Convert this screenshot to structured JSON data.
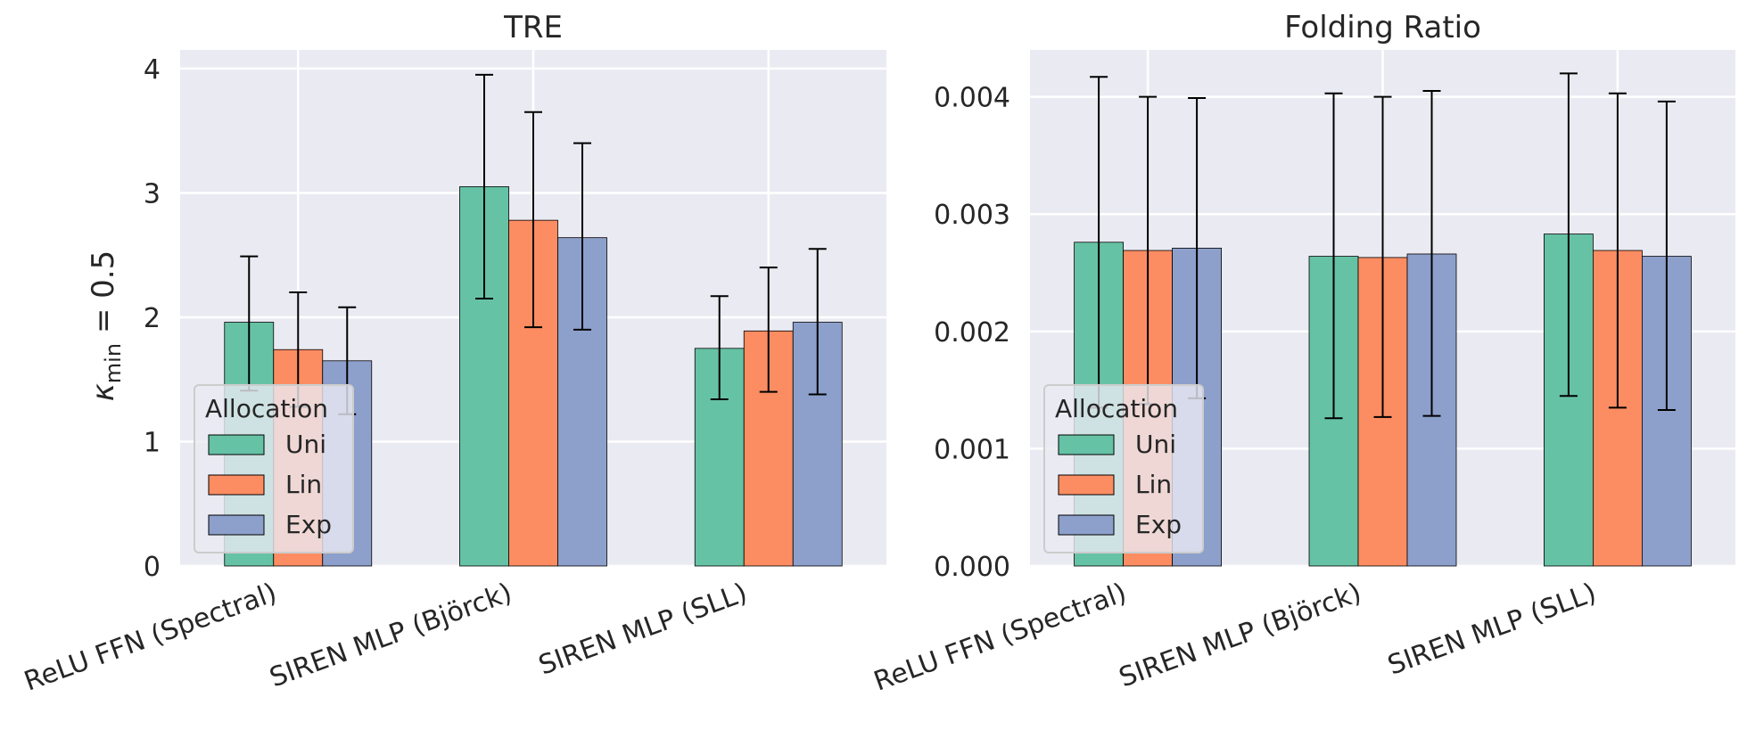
{
  "chart_data": [
    {
      "type": "bar",
      "title": "TRE",
      "ylabel": "κ_min = 0.5",
      "ylabel_main": "κ",
      "ylabel_sub": "min",
      "ylabel_rest": " = 0.5",
      "xlabel": "",
      "ylim": [
        0,
        4.15
      ],
      "yticks": [
        "0",
        "1",
        "2",
        "3",
        "4"
      ],
      "ytick_values": [
        0,
        1,
        2,
        3,
        4
      ],
      "grid": true,
      "categories": [
        "ReLU FFN (Spectral)",
        "SIREN MLP (Björck)",
        "SIREN MLP (SLL)"
      ],
      "legend": {
        "title": "Allocation",
        "placement": "lower-left"
      },
      "series": [
        {
          "name": "Uni",
          "color": "#66c2a5",
          "values": [
            1.96,
            3.05,
            1.75
          ],
          "err_low": [
            1.41,
            2.15,
            1.34
          ],
          "err_high": [
            2.49,
            3.95,
            2.17
          ]
        },
        {
          "name": "Lin",
          "color": "#fc8d62",
          "values": [
            1.74,
            2.78,
            1.89
          ],
          "err_low": [
            1.28,
            1.92,
            1.4
          ],
          "err_high": [
            2.2,
            3.65,
            2.4
          ]
        },
        {
          "name": "Exp",
          "color": "#8da0cb",
          "values": [
            1.65,
            2.64,
            1.96
          ],
          "err_low": [
            1.22,
            1.9,
            1.38
          ],
          "err_high": [
            2.08,
            3.4,
            2.55
          ]
        }
      ]
    },
    {
      "type": "bar",
      "title": "Folding Ratio",
      "ylabel": "",
      "xlabel": "",
      "ylim": [
        0,
        0.0044
      ],
      "yticks": [
        "0.000",
        "0.001",
        "0.002",
        "0.003",
        "0.004"
      ],
      "ytick_values": [
        0,
        0.001,
        0.002,
        0.003,
        0.004
      ],
      "grid": true,
      "categories": [
        "ReLU FFN (Spectral)",
        "SIREN MLP (Björck)",
        "SIREN MLP (SLL)"
      ],
      "legend": {
        "title": "Allocation",
        "placement": "lower-left"
      },
      "series": [
        {
          "name": "Uni",
          "color": "#66c2a5",
          "values": [
            0.00276,
            0.00264,
            0.00283
          ],
          "err_low": [
            0.00135,
            0.00126,
            0.00145
          ],
          "err_high": [
            0.00417,
            0.00403,
            0.0042
          ]
        },
        {
          "name": "Lin",
          "color": "#fc8d62",
          "values": [
            0.00269,
            0.00263,
            0.00269
          ],
          "err_low": [
            0.00138,
            0.00127,
            0.00135
          ],
          "err_high": [
            0.004,
            0.004,
            0.00403
          ]
        },
        {
          "name": "Exp",
          "color": "#8da0cb",
          "values": [
            0.00271,
            0.00266,
            0.00264
          ],
          "err_low": [
            0.00143,
            0.00128,
            0.00133
          ],
          "err_high": [
            0.00399,
            0.00405,
            0.00396
          ]
        }
      ]
    }
  ]
}
